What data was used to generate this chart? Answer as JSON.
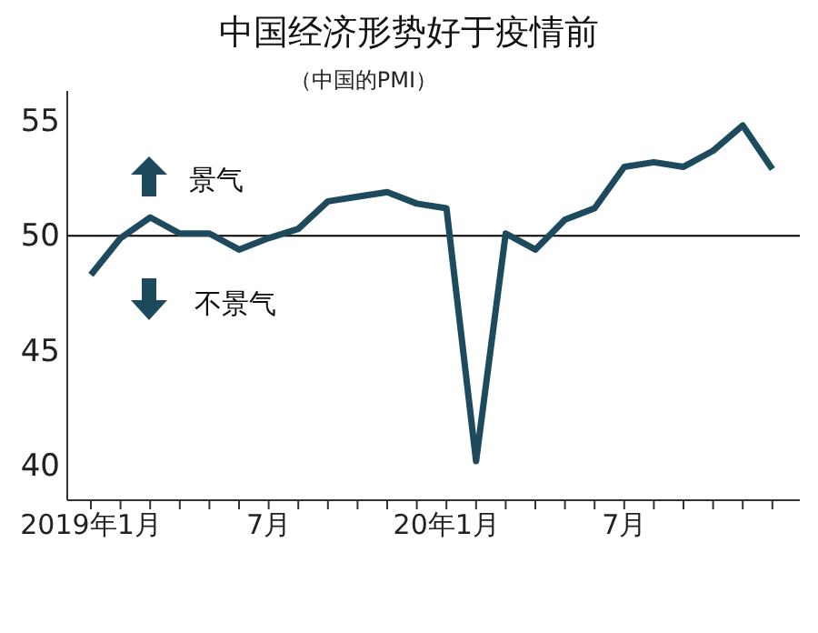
{
  "chart_data": {
    "type": "line",
    "title": "中国经济形势好于疫情前",
    "subtitle": "（中国的PMI）",
    "categories": [
      "2019年1月",
      null,
      null,
      null,
      null,
      null,
      "7月",
      null,
      null,
      null,
      null,
      null,
      "20年1月",
      null,
      null,
      null,
      null,
      null,
      "7月",
      null,
      null,
      null,
      null,
      null
    ],
    "series": [
      {
        "color": "#1e4a5e",
        "values": [
          48.3,
          49.9,
          50.8,
          50.1,
          50.1,
          49.4,
          49.9,
          50.3,
          51.5,
          51.7,
          51.9,
          51.4,
          51.2,
          40.2,
          50.1,
          49.4,
          50.7,
          51.2,
          53.0,
          53.2,
          53.0,
          53.7,
          54.8,
          52.9
        ]
      }
    ],
    "ylim": [
      38.5,
      56.3
    ],
    "yticks": [
      40,
      45,
      50,
      55
    ],
    "ref_lines": [
      {
        "axis": "y",
        "value": 50,
        "color": "#000000"
      }
    ],
    "annotations": [
      {
        "text": "景气"
      },
      {
        "text": "不景气"
      }
    ],
    "marker": "none",
    "line_style": "solid"
  }
}
